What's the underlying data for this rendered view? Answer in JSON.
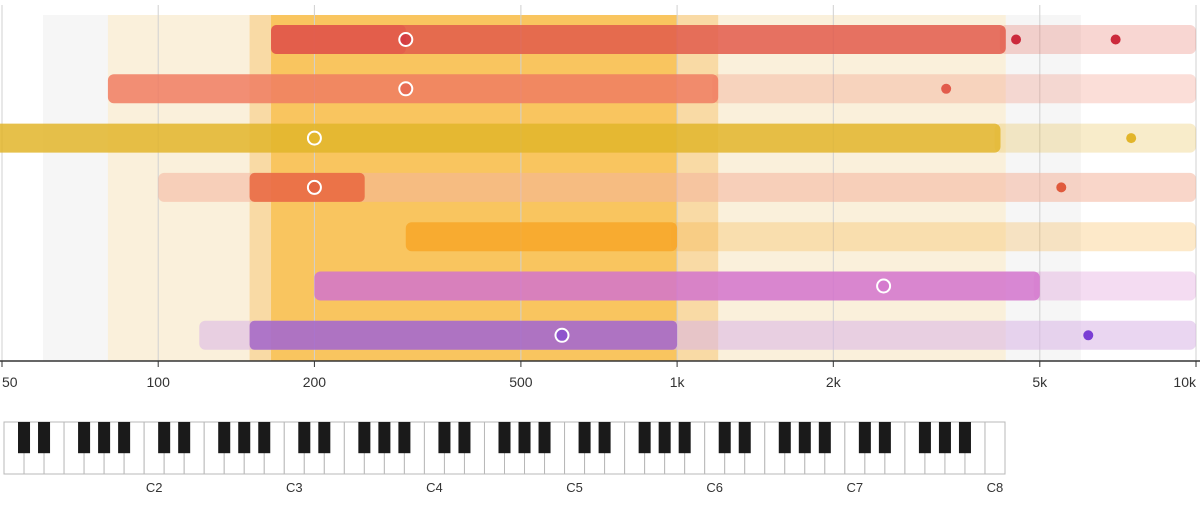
{
  "chart_data": {
    "type": "range",
    "x_scale": "log",
    "xlim": [
      50,
      10000
    ],
    "x_ticks": [
      {
        "value": 50,
        "label": "50"
      },
      {
        "value": 100,
        "label": "100"
      },
      {
        "value": 200,
        "label": "200"
      },
      {
        "value": 500,
        "label": "500"
      },
      {
        "value": 1000,
        "label": "1k"
      },
      {
        "value": 2000,
        "label": "2k"
      },
      {
        "value": 5000,
        "label": "5k"
      },
      {
        "value": 10000,
        "label": "10k"
      }
    ],
    "grid": true,
    "background_bands": [
      {
        "from": 60,
        "to": 80,
        "color": "#eeeeee",
        "opacity": 0.5
      },
      {
        "from": 4300,
        "to": 6000,
        "color": "#eeeeee",
        "opacity": 0.55
      },
      {
        "from": 80,
        "to": 4300,
        "color": "#f5deb0",
        "opacity": 0.45
      },
      {
        "from": 150,
        "to": 1200,
        "color": "#f7c878",
        "opacity": 0.55
      },
      {
        "from": 165,
        "to": 1000,
        "color": "#f8b830",
        "opacity": 0.6
      }
    ],
    "rows": [
      {
        "color": "#e25b4b",
        "range": [
          165,
          4300
        ],
        "core": [
          165,
          300
        ],
        "overtone_to": 10000,
        "fundamental": 300,
        "harmonics": [
          4500,
          7000
        ],
        "harmonic_color": "#cc2a3c"
      },
      {
        "color": "#f07c62",
        "range": [
          80,
          1200
        ],
        "overtone_to": 10000,
        "fundamental": 300,
        "harmonics": [
          3300
        ],
        "harmonic_color": "#e25b4b"
      },
      {
        "color": "#e2b52a",
        "range": [
          40,
          4200
        ],
        "overtone_to": 10000,
        "fundamental": 200,
        "harmonics": [
          7500
        ],
        "harmonic_color": "#e2b52a"
      },
      {
        "color": "#f4b49c",
        "range": [
          100,
          10000
        ],
        "core": [
          150,
          250
        ],
        "core_color": "#e8603a",
        "fundamental": 200,
        "harmonics": [
          5500
        ],
        "harmonic_color": "#e05a3c"
      },
      {
        "color": "#f8a628",
        "range": [
          300,
          1000
        ],
        "overtone_to": 10000,
        "harmonics": []
      },
      {
        "color": "#d273cd",
        "range": [
          200,
          5000
        ],
        "overtone_to": 10000,
        "fundamental": 2500,
        "harmonics": [],
        "harmonic_color": "#d273cd"
      },
      {
        "color": "#d8b4e6",
        "range": [
          120,
          10000
        ],
        "core": [
          150,
          1000
        ],
        "core_color": "#a060c8",
        "fundamental": 600,
        "harmonics": [
          6200
        ],
        "harmonic_color": "#7a3ed4"
      }
    ],
    "keyboard": {
      "octave_labels": [
        "C2",
        "C3",
        "C4",
        "C5",
        "C6",
        "C7",
        "C8"
      ]
    }
  }
}
